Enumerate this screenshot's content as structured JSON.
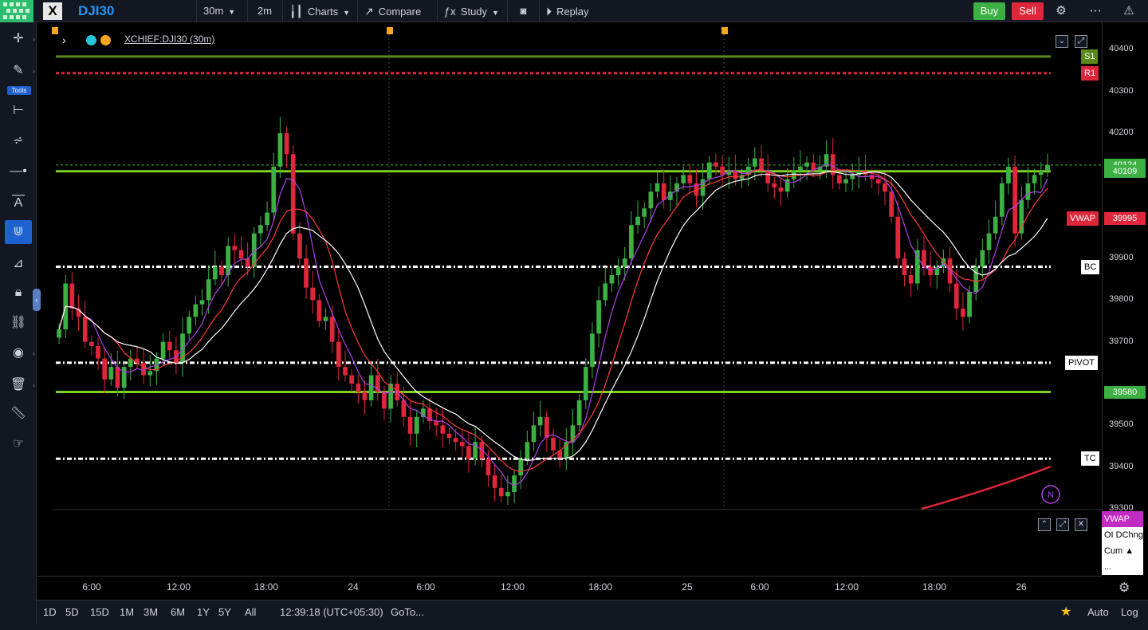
{
  "topbar": {
    "symbol": "DJI30",
    "interval": "30m",
    "interval2": "2m",
    "charts_label": "Charts",
    "compare_label": "Compare",
    "study_label": "Study",
    "replay_label": "Replay",
    "buy_label": "Buy",
    "sell_label": "Sell"
  },
  "tools_label": "Tools",
  "legend": {
    "symbol_text": "XCHIEF:DJI30 (30m)"
  },
  "chart_data": {
    "type": "candlestick",
    "ylim": [
      39300,
      40420
    ],
    "price_ticks": [
      40400,
      40300,
      40200,
      39900,
      39800,
      39700,
      39500,
      39400,
      39300
    ],
    "time_ticks": [
      "6:00",
      "12:00",
      "18:00",
      "24",
      "6:00",
      "12:00",
      "18:00",
      "25",
      "6:00",
      "12:00",
      "18:00",
      "26"
    ],
    "levels": [
      {
        "name": "S1",
        "value": 40384,
        "color": "#5a8a1e"
      },
      {
        "name": "R1",
        "value": 40344,
        "color": "#e0263a"
      },
      {
        "name": "BC",
        "value": 39880,
        "color": "#ffffff"
      },
      {
        "name": "PIVOT",
        "value": 39650,
        "color": "#ffffff"
      },
      {
        "name": "TC",
        "value": 39420,
        "color": "#ffffff"
      },
      {
        "name": "",
        "value": 39580,
        "color": "#7ed321"
      },
      {
        "name": "",
        "value": 40109,
        "color": "#7ed321"
      }
    ],
    "price_labels": [
      {
        "text": "40124",
        "value": 40124,
        "bg": "#3cb043"
      },
      {
        "text": "40109",
        "value": 40109,
        "bg": "#3cb043"
      },
      {
        "text": "39995",
        "value": 39995,
        "bg": "#e0263a"
      },
      {
        "text": "39580",
        "value": 39580,
        "bg": "#3cb043"
      }
    ],
    "vwap_label": "VWAP",
    "closes": [
      39730,
      39840,
      39780,
      39760,
      39700,
      39690,
      39660,
      39610,
      39640,
      39590,
      39640,
      39660,
      39650,
      39620,
      39630,
      39660,
      39700,
      39680,
      39650,
      39720,
      39760,
      39790,
      39800,
      39850,
      39880,
      39860,
      39930,
      39920,
      39900,
      39880,
      39960,
      39980,
      40010,
      40120,
      40200,
      40150,
      39960,
      39900,
      39830,
      39800,
      39750,
      39760,
      39700,
      39640,
      39620,
      39600,
      39580,
      39560,
      39620,
      39580,
      39540,
      39600,
      39560,
      39520,
      39480,
      39520,
      39540,
      39510,
      39500,
      39480,
      39470,
      39460,
      39450,
      39420,
      39460,
      39420,
      39380,
      39350,
      39330,
      39340,
      39380,
      39420,
      39460,
      39500,
      39520,
      39470,
      39440,
      39420,
      39460,
      39500,
      39560,
      39640,
      39720,
      39800,
      39840,
      39860,
      39880,
      39900,
      39980,
      40000,
      40020,
      40060,
      40080,
      40040,
      40060,
      40080,
      40100,
      40080,
      40050,
      40090,
      40130,
      40120,
      40100,
      40110,
      40090,
      40100,
      40120,
      40140,
      40110,
      40080,
      40070,
      40060,
      40090,
      40110,
      40120,
      40130,
      40110,
      40120,
      40150,
      40100,
      40080,
      40090,
      40100,
      40110,
      40100,
      40090,
      40080,
      40060,
      40000,
      39900,
      39860,
      39840,
      39920,
      39880,
      39860,
      39880,
      39900,
      39840,
      39780,
      39760,
      39820,
      39880,
      39920,
      39960,
      40000,
      40080,
      40120,
      39960,
      40040,
      40080,
      40100,
      40110,
      40124
    ],
    "indicators": [
      "VWAP",
      "OI DChng",
      "Cum ▲",
      "..."
    ]
  },
  "bottombar": {
    "ranges": [
      "1D",
      "5D",
      "15D",
      "1M",
      "3M",
      "6M",
      "1Y",
      "5Y",
      "All"
    ],
    "clock": "12:39:18 (UTC+05:30)",
    "goto": "GoTo...",
    "auto": "Auto",
    "log": "Log"
  },
  "colors": {
    "up": "#3cb043",
    "down": "#e0263a",
    "accent": "#2196f3"
  }
}
